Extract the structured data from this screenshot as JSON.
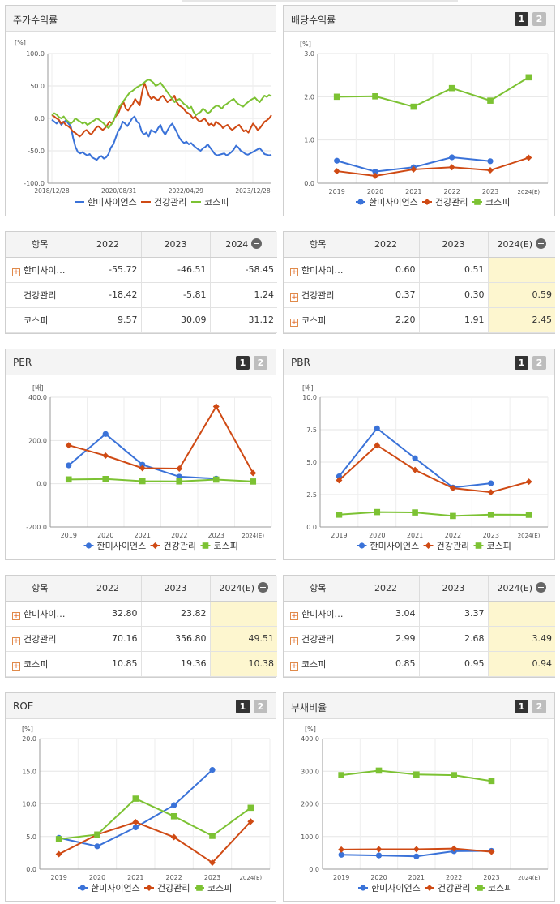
{
  "panels": {
    "stock": {
      "title": "주가수익률"
    },
    "dividend": {
      "title": "배당수익률",
      "pages": [
        "1",
        "2"
      ]
    },
    "per": {
      "title": "PER",
      "pages": [
        "1",
        "2"
      ]
    },
    "pbr": {
      "title": "PBR",
      "pages": [
        "1",
        "2"
      ]
    },
    "roe": {
      "title": "ROE",
      "pages": [
        "1",
        "2"
      ]
    },
    "debt": {
      "title": "부채비율",
      "pages": [
        "1",
        "2"
      ]
    }
  },
  "colors": {
    "hanmi": "#3a72d8",
    "health": "#cf4a14",
    "kospi": "#7cc233"
  },
  "chart_data": [
    {
      "id": "stock",
      "type": "line",
      "title": "주가수익률",
      "ylabel": "[%]",
      "ylim": [
        -100,
        100
      ],
      "yticks": [
        "100.0",
        "50.0",
        "0.0",
        "-50.0",
        "-100.0"
      ],
      "xticks": [
        "2018/12/28",
        "2020/08/31",
        "2022/04/29",
        "2023/12/28"
      ],
      "series": [
        {
          "name": "한미사이언스",
          "color": "#3a72d8",
          "values": [
            -2,
            -5,
            -8,
            -4,
            -10,
            -6,
            -3,
            -8,
            -12,
            -30,
            -44,
            -52,
            -54,
            -52,
            -55,
            -57,
            -55,
            -60,
            -62,
            -64,
            -60,
            -58,
            -62,
            -60,
            -55,
            -45,
            -40,
            -30,
            -20,
            -15,
            -5,
            -8,
            -12,
            -6,
            0,
            3,
            -5,
            -8,
            -20,
            -25,
            -22,
            -28,
            -18,
            -20,
            -22,
            -15,
            -10,
            -20,
            -25,
            -18,
            -12,
            -8,
            -15,
            -22,
            -30,
            -35,
            -38,
            -36,
            -40,
            -38,
            -42,
            -45,
            -48,
            -50,
            -46,
            -44,
            -40,
            -45,
            -50,
            -55,
            -57,
            -56,
            -55,
            -54,
            -57,
            -55,
            -52,
            -48,
            -42,
            -45,
            -50,
            -52,
            -55,
            -56,
            -54,
            -52,
            -50,
            -48,
            -46,
            -50,
            -55,
            -56,
            -57,
            -56
          ]
        },
        {
          "name": "건강관리",
          "color": "#cf4a14",
          "values": [
            5,
            3,
            0,
            -2,
            -8,
            -5,
            -10,
            -12,
            -15,
            -20,
            -22,
            -25,
            -28,
            -25,
            -20,
            -18,
            -22,
            -25,
            -20,
            -15,
            -12,
            -15,
            -18,
            -15,
            -10,
            -5,
            -8,
            0,
            5,
            10,
            20,
            25,
            15,
            12,
            18,
            22,
            30,
            25,
            20,
            40,
            55,
            45,
            35,
            30,
            33,
            30,
            28,
            32,
            35,
            30,
            25,
            28,
            30,
            35,
            25,
            20,
            18,
            15,
            10,
            8,
            5,
            0,
            3,
            -2,
            -5,
            -3,
            0,
            -5,
            -10,
            -8,
            -12,
            -5,
            -8,
            -10,
            -15,
            -12,
            -10,
            -15,
            -18,
            -15,
            -12,
            -10,
            -15,
            -20,
            -18,
            -22,
            -15,
            -8,
            -12,
            -18,
            -15,
            -10,
            -5,
            -3,
            0,
            5
          ]
        },
        {
          "name": "코스피",
          "color": "#7cc233",
          "values": [
            5,
            8,
            6,
            2,
            0,
            3,
            -2,
            -5,
            -8,
            -5,
            0,
            -3,
            -5,
            -8,
            -6,
            -10,
            -8,
            -5,
            -3,
            0,
            -2,
            -5,
            -8,
            -12,
            -15,
            -10,
            -5,
            5,
            15,
            20,
            25,
            30,
            35,
            40,
            42,
            45,
            48,
            50,
            52,
            55,
            58,
            60,
            58,
            55,
            50,
            52,
            55,
            50,
            45,
            40,
            35,
            30,
            25,
            28,
            30,
            26,
            22,
            20,
            15,
            18,
            10,
            5,
            8,
            10,
            15,
            12,
            8,
            10,
            15,
            18,
            20,
            18,
            15,
            20,
            22,
            25,
            28,
            30,
            25,
            22,
            20,
            18,
            22,
            25,
            28,
            30,
            32,
            28,
            25,
            30,
            35,
            33,
            36,
            34
          ]
        }
      ]
    },
    {
      "id": "dividend",
      "type": "line",
      "title": "배당수익률",
      "ylabel": "[%]",
      "ylim": [
        0,
        3
      ],
      "yticks": [
        "3.0",
        "2.0",
        "1.0",
        "0.0"
      ],
      "categories": [
        "2019",
        "2020",
        "2021",
        "2022",
        "2023",
        "2024(E)"
      ],
      "series": [
        {
          "name": "한미사이언스",
          "color": "#3a72d8",
          "values": [
            0.52,
            0.27,
            0.37,
            0.6,
            0.51,
            null
          ]
        },
        {
          "name": "건강관리",
          "color": "#cf4a14",
          "values": [
            0.28,
            0.17,
            0.32,
            0.37,
            0.3,
            0.59
          ]
        },
        {
          "name": "코스피",
          "color": "#7cc233",
          "values": [
            2.0,
            2.01,
            1.77,
            2.2,
            1.91,
            2.45
          ]
        }
      ]
    },
    {
      "id": "per",
      "type": "line",
      "title": "PER",
      "ylabel": "[배]",
      "ylim": [
        -200,
        400
      ],
      "yticks": [
        "400.0",
        "200.0",
        "0.0",
        "-200.0"
      ],
      "categories": [
        "2019",
        "2020",
        "2021",
        "2022",
        "2023",
        "2024(E)"
      ],
      "series": [
        {
          "name": "한미사이언스",
          "color": "#3a72d8",
          "values": [
            85,
            230,
            88,
            32.8,
            23.82,
            null
          ]
        },
        {
          "name": "건강관리",
          "color": "#cf4a14",
          "values": [
            178,
            130,
            72,
            70.16,
            356.8,
            49.51
          ]
        },
        {
          "name": "코스피",
          "color": "#7cc233",
          "values": [
            20,
            22,
            12,
            10.85,
            19.36,
            10.38
          ]
        }
      ]
    },
    {
      "id": "pbr",
      "type": "line",
      "title": "PBR",
      "ylabel": "[배]",
      "ylim": [
        0,
        10
      ],
      "yticks": [
        "10.0",
        "7.5",
        "5.0",
        "2.5",
        "0.0"
      ],
      "categories": [
        "2019",
        "2020",
        "2021",
        "2022",
        "2023",
        "2024(E)"
      ],
      "series": [
        {
          "name": "한미사이언스",
          "color": "#3a72d8",
          "values": [
            3.9,
            7.6,
            5.3,
            3.04,
            3.37,
            null
          ]
        },
        {
          "name": "건강관리",
          "color": "#cf4a14",
          "values": [
            3.6,
            6.3,
            4.4,
            2.99,
            2.68,
            3.49
          ]
        },
        {
          "name": "코스피",
          "color": "#7cc233",
          "values": [
            0.95,
            1.15,
            1.12,
            0.85,
            0.95,
            0.94
          ]
        }
      ]
    },
    {
      "id": "roe",
      "type": "line",
      "title": "ROE",
      "ylabel": "[%]",
      "ylim": [
        0,
        20
      ],
      "yticks": [
        "20.0",
        "15.0",
        "10.0",
        "5.0",
        "0.0"
      ],
      "categories": [
        "2019",
        "2020",
        "2021",
        "2022",
        "2023",
        "2024(E)"
      ],
      "series": [
        {
          "name": "한미사이언스",
          "color": "#3a72d8",
          "values": [
            4.8,
            3.5,
            6.4,
            9.8,
            15.2,
            null
          ]
        },
        {
          "name": "건강관리",
          "color": "#cf4a14",
          "values": [
            2.3,
            5.3,
            7.2,
            4.9,
            1.0,
            7.3
          ]
        },
        {
          "name": "코스피",
          "color": "#7cc233",
          "values": [
            4.6,
            5.3,
            10.8,
            8.1,
            5.1,
            9.4
          ]
        }
      ]
    },
    {
      "id": "debt",
      "type": "line",
      "title": "부채비율",
      "ylabel": "[%]",
      "ylim": [
        0,
        400
      ],
      "yticks": [
        "400.0",
        "300.0",
        "200.0",
        "100.0",
        "0.0"
      ],
      "categories": [
        "2019",
        "2020",
        "2021",
        "2022",
        "2023",
        "2024(E)"
      ],
      "series": [
        {
          "name": "한미사이언스",
          "color": "#3a72d8",
          "values": [
            44,
            42,
            39,
            55,
            56,
            null
          ]
        },
        {
          "name": "건강관리",
          "color": "#cf4a14",
          "values": [
            60,
            61,
            61,
            63,
            53,
            null
          ]
        },
        {
          "name": "코스피",
          "color": "#7cc233",
          "values": [
            288,
            302,
            290,
            288,
            270,
            null
          ]
        }
      ]
    }
  ],
  "tables": {
    "stock": {
      "headers": [
        "항목",
        "2022",
        "2023",
        "2024"
      ],
      "rows": [
        {
          "name": "한미사이…",
          "plus": true,
          "values": [
            "-55.72",
            "-46.51",
            "-58.45"
          ]
        },
        {
          "name": "건강관리",
          "plus": false,
          "values": [
            "-18.42",
            "-5.81",
            "1.24"
          ]
        },
        {
          "name": "코스피",
          "plus": false,
          "values": [
            "9.57",
            "30.09",
            "31.12"
          ]
        }
      ]
    },
    "dividend": {
      "headers": [
        "항목",
        "2022",
        "2023",
        "2024(E)"
      ],
      "rows": [
        {
          "name": "한미사이…",
          "plus": true,
          "values": [
            "0.60",
            "0.51",
            ""
          ]
        },
        {
          "name": "건강관리",
          "plus": true,
          "values": [
            "0.37",
            "0.30",
            "0.59"
          ]
        },
        {
          "name": "코스피",
          "plus": true,
          "values": [
            "2.20",
            "1.91",
            "2.45"
          ]
        }
      ]
    },
    "per": {
      "headers": [
        "항목",
        "2022",
        "2023",
        "2024(E)"
      ],
      "rows": [
        {
          "name": "한미사이…",
          "plus": true,
          "values": [
            "32.80",
            "23.82",
            ""
          ]
        },
        {
          "name": "건강관리",
          "plus": true,
          "values": [
            "70.16",
            "356.80",
            "49.51"
          ]
        },
        {
          "name": "코스피",
          "plus": true,
          "values": [
            "10.85",
            "19.36",
            "10.38"
          ]
        }
      ]
    },
    "pbr": {
      "headers": [
        "항목",
        "2022",
        "2023",
        "2024(E)"
      ],
      "rows": [
        {
          "name": "한미사이…",
          "plus": true,
          "values": [
            "3.04",
            "3.37",
            ""
          ]
        },
        {
          "name": "건강관리",
          "plus": true,
          "values": [
            "2.99",
            "2.68",
            "3.49"
          ]
        },
        {
          "name": "코스피",
          "plus": true,
          "values": [
            "0.85",
            "0.95",
            "0.94"
          ]
        }
      ]
    }
  }
}
